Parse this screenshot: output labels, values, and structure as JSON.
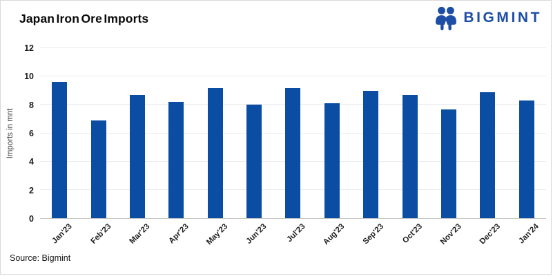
{
  "header": {
    "title": "Japan Iron Ore Imports",
    "brand": {
      "name": "BIGMINT",
      "icon": "bigmint-logo-icon",
      "color": "#1d4ea6"
    }
  },
  "chart_data": {
    "type": "bar",
    "title": "Japan Iron Ore Imports",
    "categories": [
      "Jan'23",
      "Feb'23",
      "Mar'23",
      "Apr'23",
      "May'23",
      "Jun'23",
      "Jul'23",
      "Aug'23",
      "Sep'23",
      "Oct'23",
      "Nov'23",
      "Dec'23",
      "Jan'24"
    ],
    "values": [
      9.6,
      6.9,
      8.7,
      8.2,
      9.2,
      8.0,
      9.2,
      8.1,
      9.0,
      8.7,
      7.7,
      8.9,
      8.3
    ],
    "xlabel": "",
    "ylabel": "Imports in mnt",
    "ylim": [
      0,
      12
    ],
    "yticks": [
      0,
      2,
      4,
      6,
      8,
      10,
      12
    ],
    "bar_color": "#0b4da3",
    "gridline_color": "#eaeaea",
    "grid": true,
    "legend": false
  },
  "footer": {
    "source": "Source: Bigmint"
  }
}
